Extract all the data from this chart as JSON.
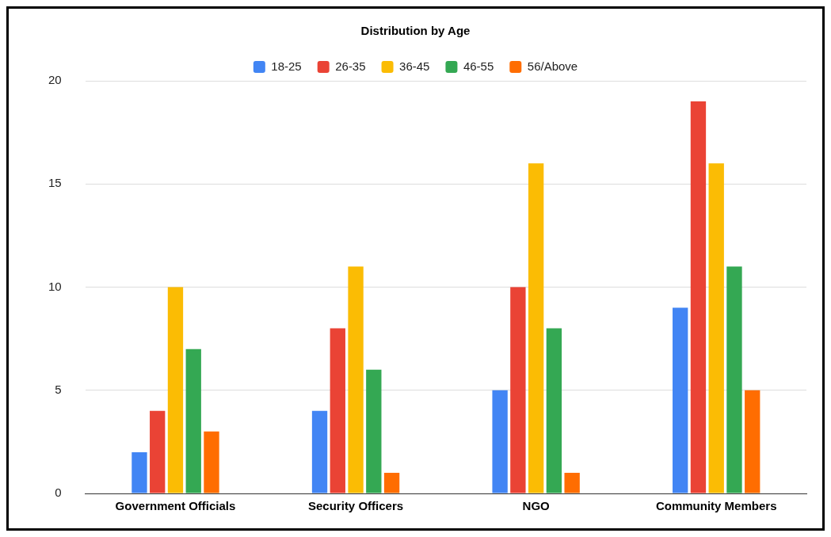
{
  "chart_data": {
    "type": "bar",
    "title": "Distribution by Age",
    "categories": [
      "Government Officials",
      "Security Officers",
      "NGO",
      "Community Members"
    ],
    "series": [
      {
        "name": "18-25",
        "color": "#4285f4",
        "values": [
          2,
          4,
          5,
          9
        ]
      },
      {
        "name": "26-35",
        "color": "#ea4335",
        "values": [
          4,
          8,
          10,
          19
        ]
      },
      {
        "name": "36-45",
        "color": "#fbbc04",
        "values": [
          10,
          11,
          16,
          16
        ]
      },
      {
        "name": "46-55",
        "color": "#34a853",
        "values": [
          7,
          6,
          8,
          11
        ]
      },
      {
        "name": "56/Above",
        "color": "#ff6d01",
        "values": [
          3,
          1,
          1,
          5
        ]
      }
    ],
    "ylim": [
      0,
      20
    ],
    "yticks": [
      0,
      5,
      10,
      15,
      20
    ],
    "grid": "y",
    "legend": "top"
  }
}
